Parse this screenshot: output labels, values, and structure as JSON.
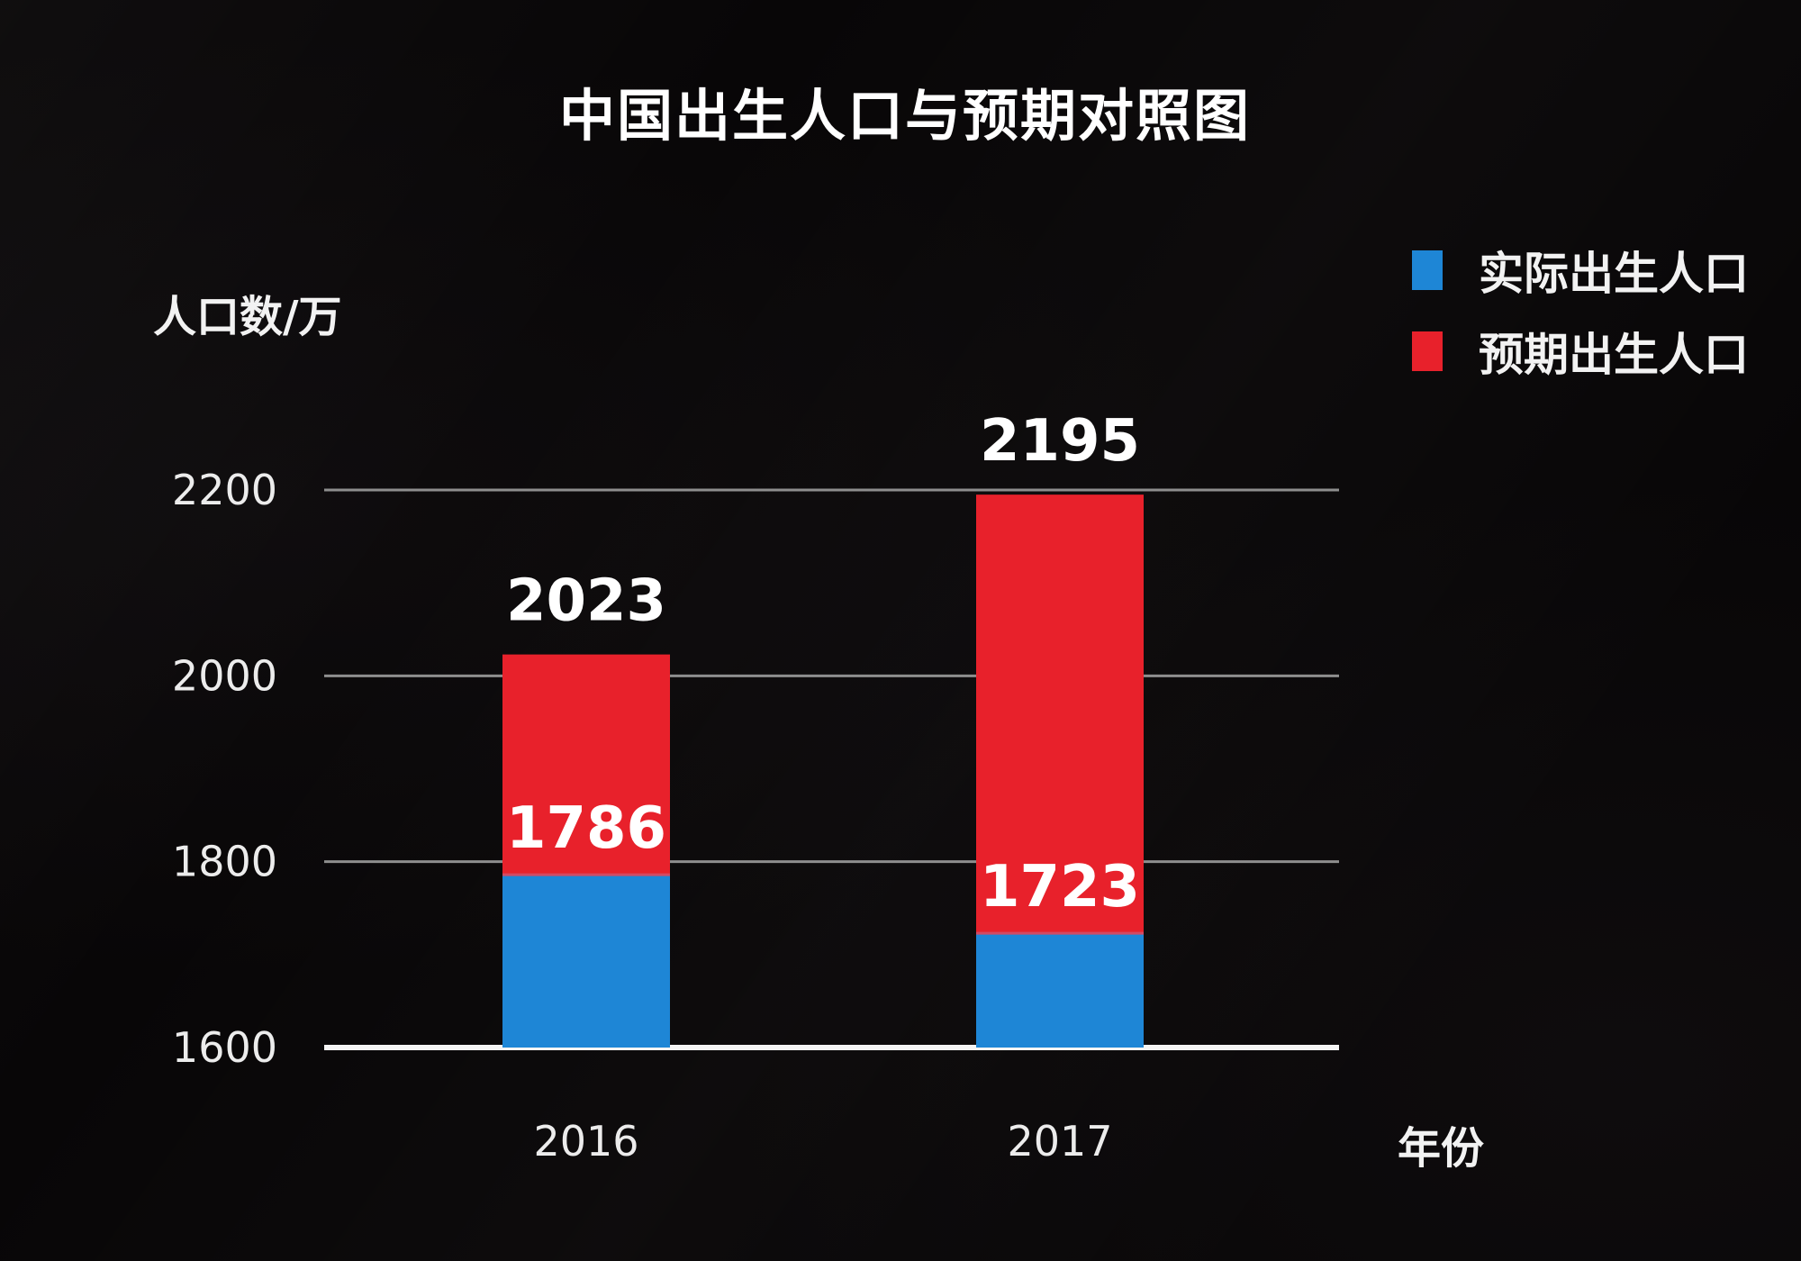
{
  "chart_data": {
    "type": "bar",
    "title": "中国出生人口与预期对照图",
    "ylabel": "人口数/万",
    "xlabel": "年份",
    "categories": [
      "2016",
      "2017"
    ],
    "series": [
      {
        "name": "实际出生人口",
        "color": "#1e86d6",
        "values": [
          1786,
          1723
        ]
      },
      {
        "name": "预期出生人口",
        "color": "#e8212b",
        "values": [
          2023,
          2195
        ]
      }
    ],
    "ylim": [
      1600,
      2200
    ],
    "yticks": [
      "1600",
      "1800",
      "2000",
      "2200"
    ],
    "grid": true,
    "legend_position": "top-right",
    "background": "#080607"
  }
}
